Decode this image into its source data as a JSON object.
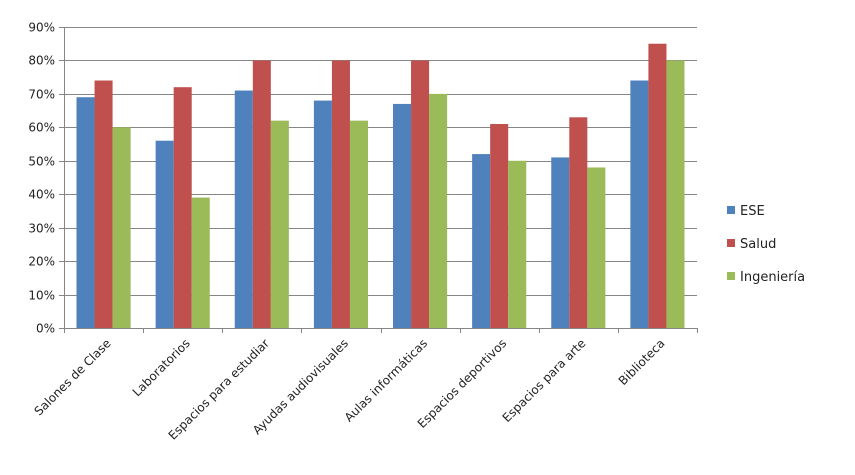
{
  "chart_data": {
    "type": "bar",
    "title": "",
    "xlabel": "",
    "ylabel": "",
    "ylim": [
      0,
      0.9
    ],
    "yticks": [
      0,
      0.1,
      0.2,
      0.3,
      0.4,
      0.5,
      0.6,
      0.7,
      0.8,
      0.9
    ],
    "ytick_labels": [
      "0%",
      "10%",
      "20%",
      "30%",
      "40%",
      "50%",
      "60%",
      "70%",
      "80%",
      "90%"
    ],
    "grid": true,
    "legend_position": "right",
    "categories": [
      "Salones de Clase",
      "Laboratorios",
      "Espacios para estudiar",
      "Ayudas audiovisuales",
      "Aulas informáticas",
      "Espacios deportivos",
      "Espacios para arte",
      "Biblioteca"
    ],
    "series": [
      {
        "name": "ESE",
        "color": "#4F81BD",
        "values": [
          0.69,
          0.56,
          0.71,
          0.68,
          0.67,
          0.52,
          0.51,
          0.74
        ]
      },
      {
        "name": "Salud",
        "color": "#C0504D",
        "values": [
          0.74,
          0.72,
          0.8,
          0.8,
          0.8,
          0.61,
          0.63,
          0.85
        ]
      },
      {
        "name": "Ingeniería",
        "color": "#9BBB59",
        "values": [
          0.6,
          0.39,
          0.62,
          0.62,
          0.7,
          0.5,
          0.48,
          0.8
        ]
      }
    ]
  }
}
